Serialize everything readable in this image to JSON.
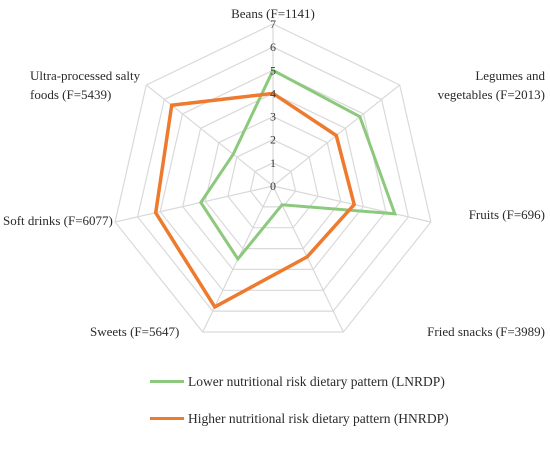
{
  "colors": {
    "series_1": "#8cc97c",
    "series_2": "#ee7a2e",
    "grid": "#d9d9d9"
  },
  "chart_data": {
    "type": "radar",
    "categories": [
      "Beans (F=1141)",
      "Legumes and vegetables (F=2013)",
      "Fruits (F=696)",
      "Fried snacks (F=3989)",
      "Sweets (F=5647)",
      "Soft drinks (F=6077)",
      "Ultra-processed salty foods (F=5439)"
    ],
    "category_lines": [
      [
        "Beans (F=1141)"
      ],
      [
        "Legumes and",
        "vegetables (F=2013)"
      ],
      [
        "Fruits (F=696)"
      ],
      [
        "Fried snacks (F=3989)"
      ],
      [
        "Sweets (F=5647)"
      ],
      [
        "Soft drinks (F=6077)"
      ],
      [
        "Ultra-processed salty",
        "foods (F=5439)"
      ]
    ],
    "ticks": [
      "0",
      "1",
      "2",
      "3",
      "4",
      "5",
      "6",
      "7"
    ],
    "rlim": [
      0,
      7
    ],
    "grid": true,
    "legend_position": "bottom",
    "series": [
      {
        "name": "Lower nutritional risk dietary pattern (LNRDP)",
        "values": [
          5.0,
          4.8,
          5.4,
          0.9,
          3.5,
          3.2,
          2.2
        ]
      },
      {
        "name": "Higher nutritional risk dietary pattern (HNRDP)",
        "values": [
          4.0,
          3.5,
          3.6,
          3.4,
          5.8,
          5.2,
          5.6
        ]
      }
    ]
  },
  "legend": {
    "items": [
      {
        "text": "Lower nutritional risk dietary pattern (LNRDP)"
      },
      {
        "text": "Higher nutritional risk dietary pattern (HNRDP)"
      }
    ]
  }
}
